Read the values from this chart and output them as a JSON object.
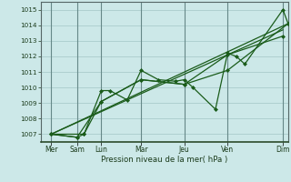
{
  "title": "",
  "xlabel": "Pression niveau de la mer( hPa )",
  "background_color": "#cce8e8",
  "grid_color": "#aacccc",
  "line_color": "#1a5c1a",
  "marker_color": "#1a5c1a",
  "ylim": [
    1006.5,
    1015.5
  ],
  "xlim": [
    -0.3,
    14.0
  ],
  "yticks": [
    1007,
    1008,
    1009,
    1010,
    1011,
    1012,
    1013,
    1014,
    1015
  ],
  "xtick_positions": [
    0.3,
    1.8,
    3.2,
    5.5,
    8.0,
    10.5,
    13.7
  ],
  "xtick_labels": [
    "Mer",
    "Sam",
    "Lun",
    "Mar",
    "Jeu",
    "Ven",
    "Dim"
  ],
  "vline_positions": [
    0.3,
    1.8,
    3.2,
    5.5,
    8.0,
    10.5,
    13.7
  ],
  "series1_x": [
    0.3,
    1.8,
    2.2,
    3.2,
    3.7,
    4.7,
    5.5,
    6.5,
    7.5,
    8.0,
    8.5,
    9.8,
    10.5,
    11.0,
    11.5,
    13.7,
    14.0
  ],
  "series1_y": [
    1007.0,
    1006.8,
    1007.0,
    1009.8,
    1009.8,
    1009.2,
    1011.1,
    1010.5,
    1010.4,
    1010.5,
    1010.0,
    1008.6,
    1012.2,
    1012.0,
    1011.5,
    1015.0,
    1014.1
  ],
  "series2_x": [
    0.3,
    1.8,
    3.2,
    5.5,
    8.0,
    10.5,
    13.7
  ],
  "series2_y": [
    1007.0,
    1006.8,
    1009.1,
    1010.5,
    1010.2,
    1012.1,
    1013.3
  ],
  "series3_x": [
    0.3,
    2.2,
    3.2,
    5.5,
    8.0,
    10.5,
    14.0
  ],
  "series3_y": [
    1007.0,
    1007.0,
    1009.1,
    1010.5,
    1010.2,
    1011.1,
    1014.1
  ],
  "trend1_x": [
    0.3,
    13.7
  ],
  "trend1_y": [
    1007.0,
    1013.7
  ],
  "trend2_x": [
    0.3,
    14.0
  ],
  "trend2_y": [
    1007.0,
    1014.1
  ]
}
